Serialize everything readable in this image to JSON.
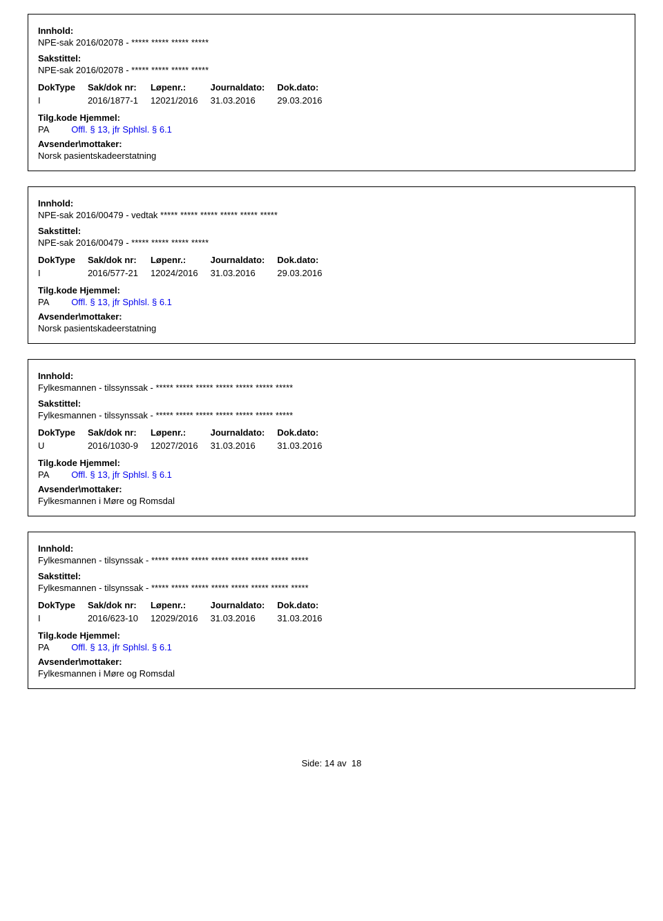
{
  "labels": {
    "innhold": "Innhold:",
    "sakstittel": "Sakstittel:",
    "doktype": "DokType",
    "sakdok": "Sak/dok nr:",
    "lopenr": "Løpenr.:",
    "journaldato": "Journaldato:",
    "dokdato": "Dok.dato:",
    "tilgkode": "Tilg.kode",
    "hjemmel": "Hjemmel:",
    "avsender": "Avsender\\mottaker:"
  },
  "records": [
    {
      "innhold": "NPE-sak 2016/02078 - ***** ***** ***** *****",
      "sakstittel": "NPE-sak 2016/02078 - ***** ***** ***** *****",
      "doktype": "I",
      "sakdok": "2016/1877-1",
      "lopenr": "12021/2016",
      "journaldato": "31.03.2016",
      "dokdato": "29.03.2016",
      "tilgkode": "PA",
      "hjemmel": "Offl. § 13, jfr Sphlsl. § 6.1",
      "avsender": "Norsk pasientskadeerstatning"
    },
    {
      "innhold": "NPE-sak 2016/00479 - vedtak ***** ***** ***** ***** ***** *****",
      "sakstittel": "NPE-sak 2016/00479 - ***** ***** ***** *****",
      "doktype": "I",
      "sakdok": "2016/577-21",
      "lopenr": "12024/2016",
      "journaldato": "31.03.2016",
      "dokdato": "29.03.2016",
      "tilgkode": "PA",
      "hjemmel": "Offl. § 13, jfr Sphlsl. § 6.1",
      "avsender": "Norsk pasientskadeerstatning"
    },
    {
      "innhold": "Fylkesmannen - tilssynssak - ***** ***** ***** ***** ***** ***** *****",
      "sakstittel": "Fylkesmannen - tilssynssak - ***** ***** ***** ***** ***** ***** *****",
      "doktype": "U",
      "sakdok": "2016/1030-9",
      "lopenr": "12027/2016",
      "journaldato": "31.03.2016",
      "dokdato": "31.03.2016",
      "tilgkode": "PA",
      "hjemmel": "Offl. § 13, jfr Sphlsl. § 6.1",
      "avsender": "Fylkesmannen i Møre og Romsdal"
    },
    {
      "innhold": "Fylkesmannen - tilsynssak - ***** ***** ***** ***** ***** ***** ***** *****",
      "sakstittel": "Fylkesmannen - tilsynssak - ***** ***** ***** ***** ***** ***** ***** *****",
      "doktype": "I",
      "sakdok": "2016/623-10",
      "lopenr": "12029/2016",
      "journaldato": "31.03.2016",
      "dokdato": "31.03.2016",
      "tilgkode": "PA",
      "hjemmel": "Offl. § 13, jfr Sphlsl. § 6.1",
      "avsender": "Fylkesmannen i Møre og Romsdal"
    }
  ],
  "footer": {
    "side_label": "Side:",
    "page": "14",
    "av": "av",
    "total": "18"
  }
}
